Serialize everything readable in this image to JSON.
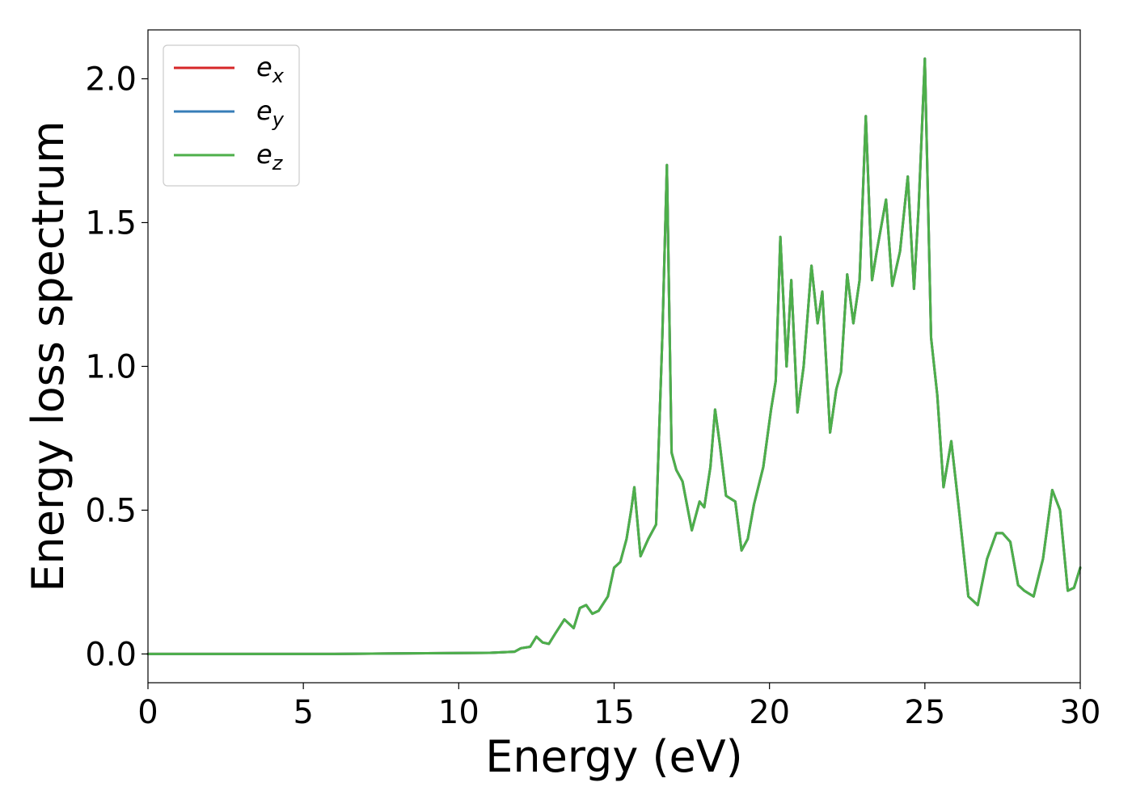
{
  "chart_data": {
    "type": "line",
    "title": "",
    "xlabel": "Energy (eV)",
    "ylabel": "Energy loss spectrum",
    "xlim": [
      0,
      30
    ],
    "ylim": [
      -0.1,
      2.17
    ],
    "xticks": [
      0,
      5,
      10,
      15,
      20,
      25,
      30
    ],
    "xtick_labels": [
      "0",
      "5",
      "10",
      "15",
      "20",
      "25",
      "30"
    ],
    "yticks": [
      0.0,
      0.5,
      1.0,
      1.5,
      2.0
    ],
    "ytick_labels": [
      "0.0",
      "0.5",
      "1.0",
      "1.5",
      "2.0"
    ],
    "grid": false,
    "legend_position": "top-left",
    "legend": [
      {
        "base": "e",
        "sub": "x",
        "color": "#d62728"
      },
      {
        "base": "e",
        "sub": "y",
        "color": "#377eb8"
      },
      {
        "base": "e",
        "sub": "z",
        "color": "#4daf4a"
      }
    ],
    "note": "",
    "x": [
      0,
      2,
      4,
      6,
      8,
      10,
      11,
      11.8,
      12.0,
      12.3,
      12.5,
      12.7,
      12.9,
      13.1,
      13.4,
      13.7,
      13.9,
      14.1,
      14.3,
      14.5,
      14.8,
      15.0,
      15.2,
      15.4,
      15.55,
      15.65,
      15.85,
      16.1,
      16.35,
      16.55,
      16.7,
      16.85,
      17.0,
      17.2,
      17.5,
      17.75,
      17.9,
      18.1,
      18.25,
      18.4,
      18.6,
      18.9,
      19.1,
      19.3,
      19.5,
      19.8,
      20.05,
      20.2,
      20.35,
      20.55,
      20.7,
      20.9,
      21.1,
      21.35,
      21.55,
      21.7,
      21.95,
      22.15,
      22.3,
      22.5,
      22.7,
      22.9,
      23.1,
      23.3,
      23.45,
      23.75,
      23.95,
      24.2,
      24.45,
      24.65,
      24.8,
      25.0,
      25.2,
      25.4,
      25.6,
      25.85,
      26.1,
      26.4,
      26.7,
      27.0,
      27.3,
      27.5,
      27.75,
      28.0,
      28.2,
      28.5,
      28.8,
      29.1,
      29.35,
      29.6,
      29.8,
      30.0
    ],
    "series": [
      {
        "name": "e_x",
        "color": "#d62728",
        "y": [
          0.0,
          0.0,
          0.0,
          0.0,
          0.002,
          0.003,
          0.004,
          0.008,
          0.02,
          0.025,
          0.06,
          0.04,
          0.035,
          0.07,
          0.12,
          0.09,
          0.16,
          0.17,
          0.14,
          0.15,
          0.2,
          0.3,
          0.32,
          0.4,
          0.5,
          0.58,
          0.34,
          0.4,
          0.45,
          1.1,
          1.7,
          0.7,
          0.64,
          0.6,
          0.43,
          0.53,
          0.51,
          0.65,
          0.85,
          0.73,
          0.55,
          0.53,
          0.36,
          0.4,
          0.52,
          0.65,
          0.85,
          0.95,
          1.45,
          1.0,
          1.3,
          0.84,
          1.0,
          1.35,
          1.15,
          1.26,
          0.77,
          0.92,
          0.98,
          1.32,
          1.15,
          1.3,
          1.87,
          1.3,
          1.4,
          1.58,
          1.28,
          1.4,
          1.66,
          1.27,
          1.55,
          2.07,
          1.1,
          0.9,
          0.58,
          0.74,
          0.5,
          0.2,
          0.17,
          0.33,
          0.42,
          0.42,
          0.39,
          0.24,
          0.22,
          0.2,
          0.33,
          0.57,
          0.5,
          0.22,
          0.23,
          0.3
        ]
      },
      {
        "name": "e_y",
        "color": "#377eb8",
        "y": [
          0.0,
          0.0,
          0.0,
          0.0,
          0.002,
          0.003,
          0.004,
          0.008,
          0.02,
          0.025,
          0.06,
          0.04,
          0.035,
          0.07,
          0.12,
          0.09,
          0.16,
          0.17,
          0.14,
          0.15,
          0.2,
          0.3,
          0.32,
          0.4,
          0.5,
          0.58,
          0.34,
          0.4,
          0.45,
          1.1,
          1.7,
          0.7,
          0.64,
          0.6,
          0.43,
          0.53,
          0.51,
          0.65,
          0.85,
          0.73,
          0.55,
          0.53,
          0.36,
          0.4,
          0.52,
          0.65,
          0.85,
          0.95,
          1.45,
          1.0,
          1.3,
          0.84,
          1.0,
          1.35,
          1.15,
          1.26,
          0.77,
          0.92,
          0.98,
          1.32,
          1.15,
          1.3,
          1.87,
          1.3,
          1.4,
          1.58,
          1.28,
          1.4,
          1.66,
          1.27,
          1.55,
          2.07,
          1.1,
          0.9,
          0.58,
          0.74,
          0.5,
          0.2,
          0.17,
          0.33,
          0.42,
          0.42,
          0.39,
          0.24,
          0.22,
          0.2,
          0.33,
          0.57,
          0.5,
          0.22,
          0.23,
          0.3
        ]
      },
      {
        "name": "e_z",
        "color": "#4daf4a",
        "y": [
          0.0,
          0.0,
          0.0,
          0.0,
          0.002,
          0.003,
          0.004,
          0.008,
          0.02,
          0.025,
          0.06,
          0.04,
          0.035,
          0.07,
          0.12,
          0.09,
          0.16,
          0.17,
          0.14,
          0.15,
          0.2,
          0.3,
          0.32,
          0.4,
          0.5,
          0.58,
          0.34,
          0.4,
          0.45,
          1.1,
          1.7,
          0.7,
          0.64,
          0.6,
          0.43,
          0.53,
          0.51,
          0.65,
          0.85,
          0.73,
          0.55,
          0.53,
          0.36,
          0.4,
          0.52,
          0.65,
          0.85,
          0.95,
          1.45,
          1.0,
          1.3,
          0.84,
          1.0,
          1.35,
          1.15,
          1.26,
          0.77,
          0.92,
          0.98,
          1.32,
          1.15,
          1.3,
          1.87,
          1.3,
          1.4,
          1.58,
          1.28,
          1.4,
          1.66,
          1.27,
          1.55,
          2.07,
          1.1,
          0.9,
          0.58,
          0.74,
          0.5,
          0.2,
          0.17,
          0.33,
          0.42,
          0.42,
          0.39,
          0.24,
          0.22,
          0.2,
          0.33,
          0.57,
          0.5,
          0.22,
          0.23,
          0.3
        ]
      }
    ]
  }
}
